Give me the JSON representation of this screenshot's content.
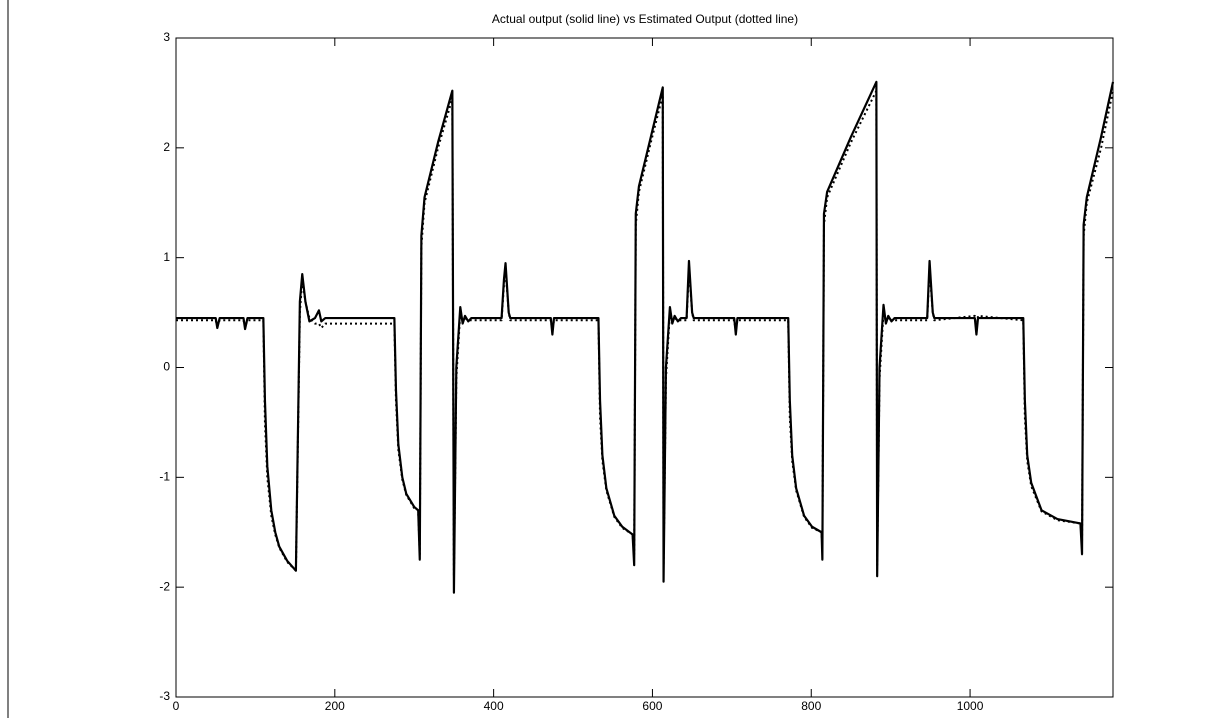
{
  "chart_data": {
    "type": "line",
    "title": "Actual output (solid line) vs Estimated Output (dotted line)",
    "x": [
      0,
      50,
      52,
      55,
      85,
      87,
      90,
      110,
      112,
      115,
      120,
      125,
      130,
      140,
      151,
      156,
      159,
      163,
      168,
      175,
      180,
      183,
      188,
      275,
      277,
      280,
      285,
      290,
      300,
      305,
      307,
      309,
      313,
      330,
      348,
      350,
      353,
      358,
      361,
      364,
      368,
      372,
      410,
      413,
      415,
      419,
      421,
      472,
      474,
      476,
      532,
      534,
      537,
      542,
      552,
      562,
      575,
      577,
      579,
      583,
      598,
      613,
      614,
      617,
      622,
      625,
      628,
      632,
      636,
      643,
      646,
      650,
      652,
      703,
      705,
      707,
      771,
      773,
      776,
      781,
      791,
      801,
      813,
      814,
      816,
      820,
      850,
      882,
      883,
      886,
      891,
      894,
      897,
      901,
      905,
      946,
      949,
      953,
      955,
      1006,
      1008,
      1010,
      1067,
      1069,
      1072,
      1077,
      1090,
      1110,
      1139,
      1141,
      1143,
      1147,
      1165,
      1180
    ],
    "series": [
      {
        "color": "#000000",
        "dash": "solid",
        "values": [
          0.45,
          0.45,
          0.36,
          0.45,
          0.45,
          0.35,
          0.45,
          0.45,
          -0.3,
          -0.9,
          -1.3,
          -1.5,
          -1.63,
          -1.76,
          -1.85,
          0.6,
          0.85,
          0.6,
          0.42,
          0.45,
          0.52,
          0.42,
          0.45,
          0.45,
          -0.2,
          -0.7,
          -1.0,
          -1.15,
          -1.27,
          -1.3,
          -1.75,
          1.2,
          1.55,
          2.05,
          2.52,
          -2.05,
          0,
          0.55,
          0.4,
          0.47,
          0.42,
          0.45,
          0.45,
          0.8,
          0.95,
          0.5,
          0.45,
          0.45,
          0.3,
          0.45,
          0.45,
          -0.3,
          -0.8,
          -1.1,
          -1.35,
          -1.45,
          -1.52,
          -1.8,
          1.4,
          1.65,
          2.1,
          2.55,
          -1.95,
          0,
          0.55,
          0.4,
          0.47,
          0.42,
          0.45,
          0.45,
          0.97,
          0.5,
          0.45,
          0.45,
          0.3,
          0.45,
          0.45,
          -0.3,
          -0.8,
          -1.1,
          -1.35,
          -1.45,
          -1.5,
          -1.75,
          1.4,
          1.6,
          2.1,
          2.6,
          -1.9,
          0,
          0.57,
          0.4,
          0.47,
          0.42,
          0.45,
          0.45,
          0.97,
          0.5,
          0.45,
          0.45,
          0.3,
          0.45,
          0.45,
          -0.3,
          -0.8,
          -1.05,
          -1.3,
          -1.38,
          -1.42,
          -1.7,
          1.3,
          1.55,
          2.1,
          2.6
        ]
      },
      {
        "color": "#000000",
        "dash": "dotted",
        "values": [
          0.43,
          0.43,
          0.38,
          0.43,
          0.43,
          0.37,
          0.43,
          0.43,
          -0.5,
          -1.0,
          -1.35,
          -1.52,
          -1.64,
          -1.77,
          -1.85,
          0.5,
          0.8,
          0.6,
          0.45,
          0.4,
          0.4,
          0.36,
          0.4,
          0.4,
          -0.3,
          -0.75,
          -1.02,
          -1.16,
          -1.28,
          -1.3,
          -1.7,
          1.1,
          1.5,
          2.0,
          2.45,
          -1.9,
          -0.1,
          0.5,
          0.42,
          0.45,
          0.43,
          0.43,
          0.43,
          0.75,
          0.9,
          0.5,
          0.43,
          0.43,
          0.33,
          0.43,
          0.43,
          -0.45,
          -0.85,
          -1.12,
          -1.36,
          -1.46,
          -1.52,
          -1.7,
          1.3,
          1.6,
          2.05,
          2.48,
          -1.8,
          -0.1,
          0.5,
          0.42,
          0.45,
          0.43,
          0.43,
          0.43,
          0.9,
          0.5,
          0.43,
          0.43,
          0.33,
          0.43,
          0.43,
          -0.45,
          -0.85,
          -1.12,
          -1.36,
          -1.46,
          -1.5,
          -1.65,
          1.3,
          1.55,
          2.05,
          2.52,
          -1.8,
          -0.1,
          0.5,
          0.42,
          0.45,
          0.43,
          0.43,
          0.43,
          0.9,
          0.5,
          0.43,
          0.47,
          0.33,
          0.47,
          0.43,
          -0.45,
          -0.85,
          -1.08,
          -1.31,
          -1.39,
          -1.42,
          -1.6,
          1.2,
          1.5,
          2.0,
          2.52
        ]
      }
    ],
    "xlim": [
      0,
      1180
    ],
    "ylim": [
      -3,
      3
    ],
    "xticks": [
      0,
      200,
      400,
      600,
      800,
      1000
    ],
    "yticks": [
      -3,
      -2,
      -1,
      0,
      1,
      2,
      3
    ]
  }
}
